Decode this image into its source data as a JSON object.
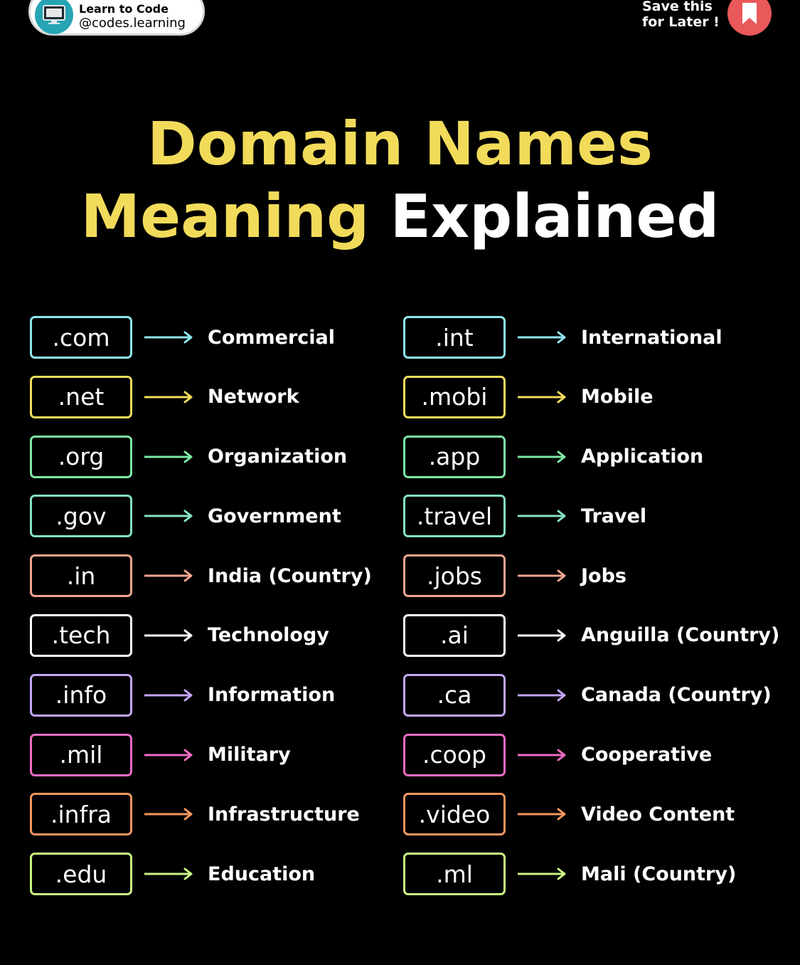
{
  "brand": {
    "name": "Learn to Code",
    "handle": "@codes.learning"
  },
  "save": {
    "line1": "Save this",
    "line2": "for Later !"
  },
  "title": {
    "line1": "Domain Names",
    "line2_part1": "Meaning",
    "line2_part2": "Explained"
  },
  "colors": {
    "title_yellow": "#f2db5a",
    "save_red": "#e9585a",
    "cyan": "#8fe6ee",
    "yellow": "#f3dd5c",
    "green": "#7de8a6",
    "teal": "#86e3c3",
    "salmon": "#f2a58f",
    "white": "#ffffff",
    "lavender": "#c3a6f6",
    "pink": "#ee6cc4",
    "orange": "#f39660",
    "lime": "#c9f583"
  },
  "left": [
    {
      "tld": ".com",
      "meaning": "Commercial",
      "color": "#8fe6ee"
    },
    {
      "tld": ".net",
      "meaning": "Network",
      "color": "#f3dd5c"
    },
    {
      "tld": ".org",
      "meaning": "Organization",
      "color": "#7de8a6"
    },
    {
      "tld": ".gov",
      "meaning": "Government",
      "color": "#86e3c3"
    },
    {
      "tld": ".in",
      "meaning": "India (Country)",
      "color": "#f2a58f"
    },
    {
      "tld": ".tech",
      "meaning": "Technology",
      "color": "#ffffff"
    },
    {
      "tld": ".info",
      "meaning": "Information",
      "color": "#c3a6f6"
    },
    {
      "tld": ".mil",
      "meaning": "Military",
      "color": "#ee6cc4"
    },
    {
      "tld": ".infra",
      "meaning": "Infrastructure",
      "color": "#f39660"
    },
    {
      "tld": ".edu",
      "meaning": "Education",
      "color": "#c9f583"
    }
  ],
  "right": [
    {
      "tld": ".int",
      "meaning": "International",
      "color": "#8fe6ee"
    },
    {
      "tld": ".mobi",
      "meaning": "Mobile",
      "color": "#f3dd5c"
    },
    {
      "tld": ".app",
      "meaning": "Application",
      "color": "#7de8a6"
    },
    {
      "tld": ".travel",
      "meaning": "Travel",
      "color": "#86e3c3"
    },
    {
      "tld": ".jobs",
      "meaning": "Jobs",
      "color": "#f2a58f"
    },
    {
      "tld": ".ai",
      "meaning": "Anguilla (Country)",
      "color": "#ffffff"
    },
    {
      "tld": ".ca",
      "meaning": "Canada (Country)",
      "color": "#c3a6f6"
    },
    {
      "tld": ".coop",
      "meaning": "Cooperative",
      "color": "#ee6cc4"
    },
    {
      "tld": ".video",
      "meaning": "Video Content",
      "color": "#f39660"
    },
    {
      "tld": ".ml",
      "meaning": "Mali (Country)",
      "color": "#c9f583"
    }
  ]
}
